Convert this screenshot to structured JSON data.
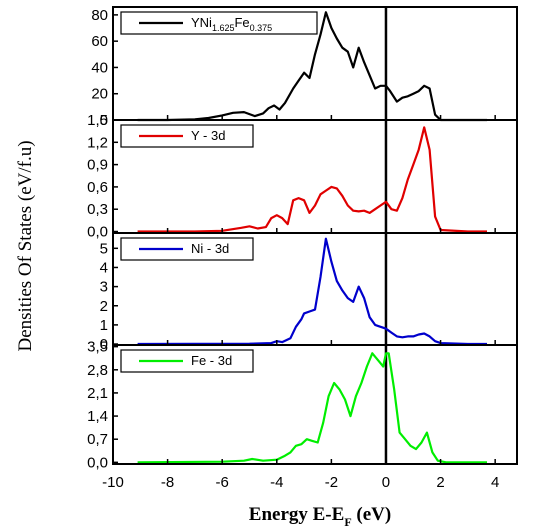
{
  "chart_data": {
    "type": "line",
    "ylabel": "Densities Of States (eV/f.u)",
    "xlabel": {
      "main": "Energy E-E",
      "sub": "F",
      "unit": " (eV)"
    },
    "xlim": [
      -10,
      4.8
    ],
    "xticks": [
      -10,
      -8,
      -6,
      -4,
      -2,
      0,
      2,
      4
    ],
    "fermi_line_x": 0,
    "panels": [
      {
        "name": "YNi1.625Fe0.375",
        "legend": {
          "parts": [
            "YNi",
            "1.625",
            "Fe",
            "0.375"
          ]
        },
        "color": "#000000",
        "ylim": [
          0,
          86
        ],
        "yticks": [
          0,
          20,
          40,
          60,
          80
        ],
        "yticklabels": [
          "0",
          "20",
          "40",
          "60",
          "80"
        ],
        "x": [
          -9.1,
          -8,
          -7,
          -6.5,
          -6,
          -5.6,
          -5.2,
          -4.8,
          -4.5,
          -4.3,
          -4.1,
          -3.9,
          -3.7,
          -3.4,
          -3.2,
          -3.0,
          -2.8,
          -2.6,
          -2.4,
          -2.2,
          -2.0,
          -1.8,
          -1.6,
          -1.4,
          -1.2,
          -1.0,
          -0.8,
          -0.6,
          -0.4,
          -0.2,
          0.0,
          0.15,
          0.4,
          0.6,
          0.8,
          1.0,
          1.2,
          1.4,
          1.6,
          1.8,
          2.0,
          2.5,
          3.0,
          3.7
        ],
        "values": [
          0,
          0,
          0.5,
          1.5,
          3.5,
          5.5,
          6,
          3,
          5,
          9,
          11,
          8,
          13,
          24,
          30,
          36,
          32,
          50,
          65,
          82,
          70,
          62,
          55,
          52,
          40,
          55,
          44,
          34,
          24,
          26,
          26,
          22,
          14,
          17,
          18,
          20,
          22,
          26,
          24,
          4,
          0,
          0,
          0,
          0
        ]
      },
      {
        "name": "Y - 3d",
        "legend": {
          "parts": [
            "Y - 3d"
          ]
        },
        "color": "#e00000",
        "ylim": [
          -0.02,
          1.5
        ],
        "yticks": [
          0,
          0.3,
          0.6,
          0.9,
          1.2,
          1.5
        ],
        "yticklabels": [
          "0,0",
          "0,3",
          "0,6",
          "0,9",
          "1,2",
          "1,5"
        ],
        "x": [
          -9.1,
          -7,
          -6,
          -5.3,
          -5.0,
          -4.7,
          -4.4,
          -4.2,
          -4.0,
          -3.8,
          -3.6,
          -3.4,
          -3.2,
          -3.0,
          -2.8,
          -2.6,
          -2.4,
          -2.2,
          -2.0,
          -1.8,
          -1.6,
          -1.4,
          -1.2,
          -1.0,
          -0.8,
          -0.6,
          -0.4,
          -0.2,
          0.0,
          0.2,
          0.4,
          0.6,
          0.8,
          1.0,
          1.2,
          1.4,
          1.6,
          1.8,
          2.0,
          3.0,
          3.7
        ],
        "values": [
          0,
          0,
          0.01,
          0.05,
          0.07,
          0.04,
          0.06,
          0.18,
          0.22,
          0.18,
          0.1,
          0.42,
          0.45,
          0.42,
          0.25,
          0.35,
          0.5,
          0.55,
          0.6,
          0.58,
          0.48,
          0.35,
          0.28,
          0.27,
          0.28,
          0.25,
          0.3,
          0.35,
          0.4,
          0.3,
          0.28,
          0.45,
          0.7,
          0.9,
          1.1,
          1.4,
          1.1,
          0.2,
          0.02,
          0,
          0
        ]
      },
      {
        "name": "Ni - 3d",
        "legend": {
          "parts": [
            "Ni - 3d"
          ]
        },
        "color": "#0000cc",
        "ylim": [
          -0.05,
          5.8
        ],
        "yticks": [
          0,
          1,
          2,
          3,
          4,
          5
        ],
        "yticklabels": [
          "0",
          "1",
          "2",
          "3",
          "4",
          "5"
        ],
        "x": [
          -9.1,
          -5,
          -4.2,
          -4.0,
          -3.8,
          -3.5,
          -3.3,
          -3.1,
          -3.0,
          -2.8,
          -2.6,
          -2.4,
          -2.2,
          -2.0,
          -1.8,
          -1.6,
          -1.4,
          -1.2,
          -1.0,
          -0.8,
          -0.6,
          -0.4,
          -0.2,
          0.0,
          0.2,
          0.4,
          0.6,
          0.8,
          1.0,
          1.2,
          1.4,
          1.6,
          1.8,
          2.0,
          3.0,
          3.7
        ],
        "values": [
          0,
          0.02,
          0.05,
          0.15,
          0.1,
          0.3,
          0.9,
          1.3,
          1.6,
          1.7,
          1.8,
          3.5,
          5.5,
          4.3,
          3.3,
          2.8,
          2.4,
          2.2,
          3.0,
          2.4,
          1.4,
          1.0,
          0.9,
          0.8,
          0.6,
          0.4,
          0.35,
          0.4,
          0.4,
          0.5,
          0.55,
          0.4,
          0.15,
          0.05,
          0,
          0
        ]
      },
      {
        "name": "Fe - 3d",
        "legend": {
          "parts": [
            "Fe - 3d"
          ]
        },
        "color": "#00ee00",
        "ylim": [
          -0.05,
          3.55
        ],
        "yticks": [
          0,
          0.7,
          1.4,
          2.1,
          2.8,
          3.5
        ],
        "yticklabels": [
          "0,0",
          "0,7",
          "1,4",
          "2,1",
          "2,8",
          "3,5"
        ],
        "x": [
          -9.1,
          -6,
          -5.2,
          -4.9,
          -4.5,
          -4.0,
          -3.7,
          -3.5,
          -3.3,
          -3.1,
          -2.9,
          -2.7,
          -2.5,
          -2.3,
          -2.1,
          -1.9,
          -1.7,
          -1.5,
          -1.3,
          -1.1,
          -0.9,
          -0.7,
          -0.5,
          -0.3,
          -0.1,
          0.0,
          0.1,
          0.3,
          0.5,
          0.7,
          0.9,
          1.1,
          1.3,
          1.5,
          1.7,
          1.9,
          2.2,
          3.0,
          3.7
        ],
        "values": [
          0,
          0.02,
          0.05,
          0.1,
          0.05,
          0.08,
          0.2,
          0.3,
          0.5,
          0.55,
          0.7,
          0.65,
          0.6,
          1.2,
          2.0,
          2.4,
          2.2,
          1.9,
          1.4,
          2.0,
          2.4,
          2.9,
          3.3,
          3.1,
          2.9,
          3.3,
          3.3,
          2.2,
          0.9,
          0.7,
          0.5,
          0.4,
          0.6,
          0.9,
          0.3,
          0.05,
          0,
          0,
          0
        ]
      }
    ]
  }
}
